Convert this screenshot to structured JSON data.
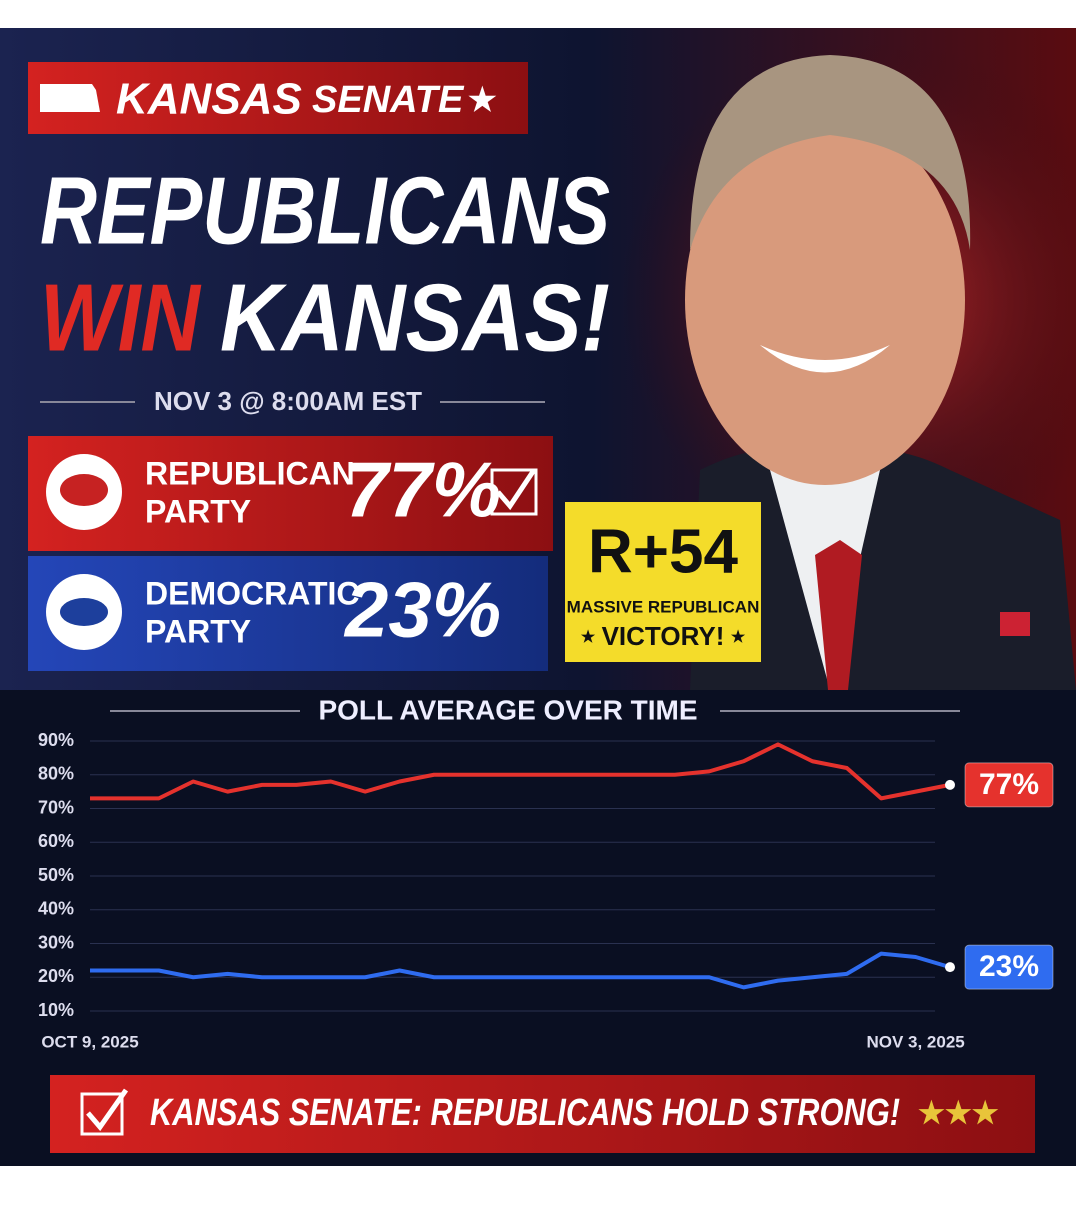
{
  "header": {
    "state": "KANSAS",
    "race": "SENATE",
    "headline_1": "REPUBLICANS",
    "headline_2a": "WIN",
    "headline_2b": "KANSAS!",
    "timestamp": "NOV 3 @ 8:00AM EST"
  },
  "results": [
    {
      "line_1": "REPUBLICAN",
      "line_2": "PARTY",
      "share": "77%"
    },
    {
      "line_1": "DEMOCRATIC",
      "line_2": "PARTY",
      "share": "23%"
    }
  ],
  "badge": {
    "margin": "R+54",
    "line_1": "MASSIVE REPUBLICAN",
    "line_2": "VICTORY!"
  },
  "chart_data": {
    "type": "line",
    "title": "POLL AVERAGE OVER TIME",
    "categories": [
      "OCT 9, 2025",
      null,
      null,
      null,
      null,
      null,
      null,
      null,
      null,
      null,
      null,
      null,
      null,
      null,
      null,
      null,
      null,
      null,
      null,
      null,
      null,
      null,
      null,
      null,
      "NOV 3, 2025",
      null
    ],
    "series": [
      {
        "name": "Republican",
        "color": "#e5322d",
        "values": [
          73,
          73,
          73,
          78,
          75,
          77,
          77,
          78,
          75,
          78,
          80,
          80,
          80,
          80,
          80,
          80,
          80,
          80,
          81,
          84,
          89,
          84,
          82,
          73,
          75,
          77
        ],
        "value_labels": [
          null,
          null,
          null,
          null,
          null,
          null,
          null,
          null,
          null,
          null,
          null,
          null,
          null,
          null,
          null,
          null,
          null,
          null,
          null,
          null,
          null,
          null,
          null,
          null,
          null,
          "77%"
        ]
      },
      {
        "name": "Democratic",
        "color": "#2f6cf0",
        "values": [
          22,
          22,
          22,
          20,
          21,
          20,
          20,
          20,
          20,
          22,
          20,
          20,
          20,
          20,
          20,
          20,
          20,
          20,
          20,
          17,
          19,
          20,
          21,
          27,
          26,
          23
        ],
        "value_labels": [
          null,
          null,
          null,
          null,
          null,
          null,
          null,
          null,
          null,
          null,
          null,
          null,
          null,
          null,
          null,
          null,
          null,
          null,
          null,
          null,
          null,
          null,
          null,
          null,
          null,
          "23%"
        ]
      }
    ],
    "ylim": [
      10,
      90
    ],
    "yticks": [
      {
        "value": 10,
        "label": "10%"
      },
      {
        "value": 20,
        "label": "20%"
      },
      {
        "value": 30,
        "label": "30%"
      },
      {
        "value": 40,
        "label": "40%"
      },
      {
        "value": 50,
        "label": "50%"
      },
      {
        "value": 60,
        "label": "60%"
      },
      {
        "value": 70,
        "label": "70%"
      },
      {
        "value": 80,
        "label": "80%"
      },
      {
        "value": 90,
        "label": "90%"
      }
    ],
    "grid": true
  },
  "footer": {
    "text": "KANSAS SENATE: REPUBLICANS HOLD STRONG!"
  }
}
